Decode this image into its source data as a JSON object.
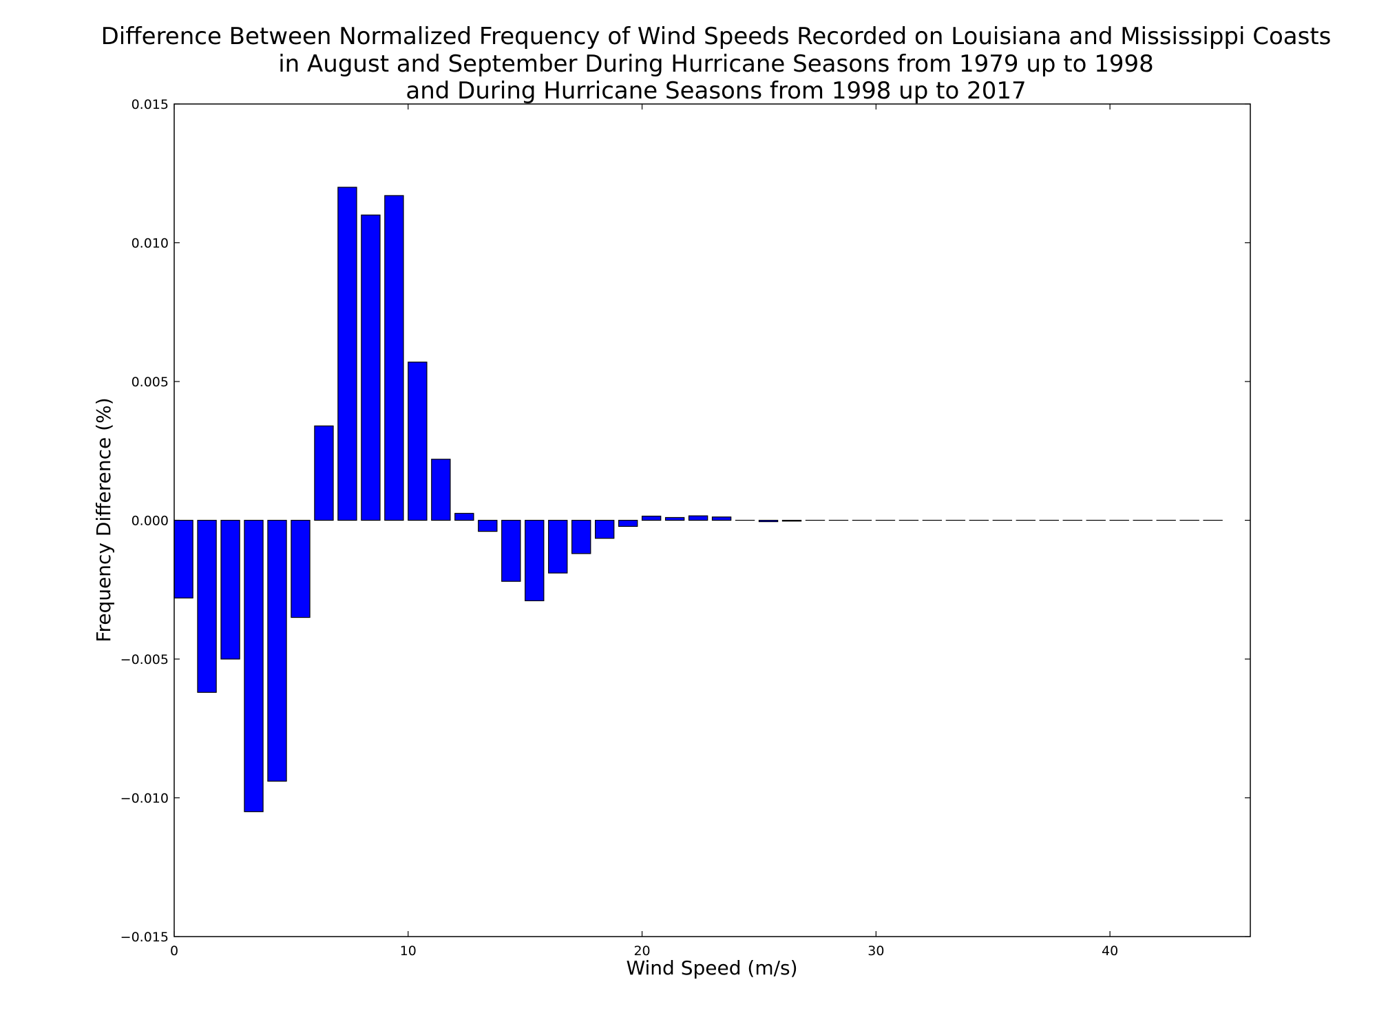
{
  "colors": {
    "bar_fill": "#0000ff",
    "bar_edge": "#000000",
    "axes": "#000000",
    "background": "#ffffff"
  },
  "chart_data": {
    "type": "bar",
    "title": "Difference Between Normalized Frequency of Wind Speeds Recorded on Louisiana and Mississippi Coasts in August and September During Hurricane Seasons from 1979 up to 1998 and During Hurricane Seasons from 1998 up to 2017",
    "title_lines": [
      "Difference Between Normalized Frequency of Wind Speeds Recorded on Louisiana and Mississippi Coasts",
      "in August and September During Hurricane Seasons from 1979 up to 1998",
      "and During Hurricane Seasons from 1998 up to 2017"
    ],
    "xlabel": "Wind Speed (m/s)",
    "ylabel": "Frequency Difference (%)",
    "xlim": [
      0,
      46
    ],
    "ylim": [
      -0.015,
      0.015
    ],
    "grid": false,
    "legend": "none",
    "bar_width": 0.8,
    "xticks": [
      0,
      10,
      20,
      30,
      40
    ],
    "xtick_labels": [
      "0",
      "10",
      "20",
      "30",
      "40"
    ],
    "yticks": [
      -0.015,
      -0.01,
      -0.005,
      0.0,
      0.005,
      0.01,
      0.015
    ],
    "ytick_labels": [
      "−0.015",
      "−0.010",
      "−0.005",
      "0.000",
      "0.005",
      "0.010",
      "0.015"
    ],
    "x": [
      0,
      1,
      2,
      3,
      4,
      5,
      6,
      7,
      8,
      9,
      10,
      11,
      12,
      13,
      14,
      15,
      16,
      17,
      18,
      19,
      20,
      21,
      22,
      23,
      24,
      25,
      26,
      27,
      28,
      29,
      30,
      31,
      32,
      33,
      34,
      35,
      36,
      37,
      38,
      39,
      40,
      41,
      42,
      43,
      44
    ],
    "values": [
      -0.0028,
      -0.0062,
      -0.005,
      -0.0105,
      -0.0094,
      -0.0035,
      0.0034,
      0.012,
      0.011,
      0.0117,
      0.0057,
      0.0022,
      0.00025,
      -0.0004,
      -0.0022,
      -0.0029,
      -0.0019,
      -0.0012,
      -0.00065,
      -0.00022,
      0.00015,
      0.0001,
      0.00016,
      0.00012,
      0.0,
      -5e-05,
      -3e-05,
      0.0,
      0.0,
      0.0,
      0.0,
      0.0,
      0.0,
      0.0,
      0.0,
      0.0,
      0.0,
      0.0,
      0.0,
      0.0,
      0.0,
      0.0,
      0.0,
      0.0,
      0.0
    ]
  }
}
